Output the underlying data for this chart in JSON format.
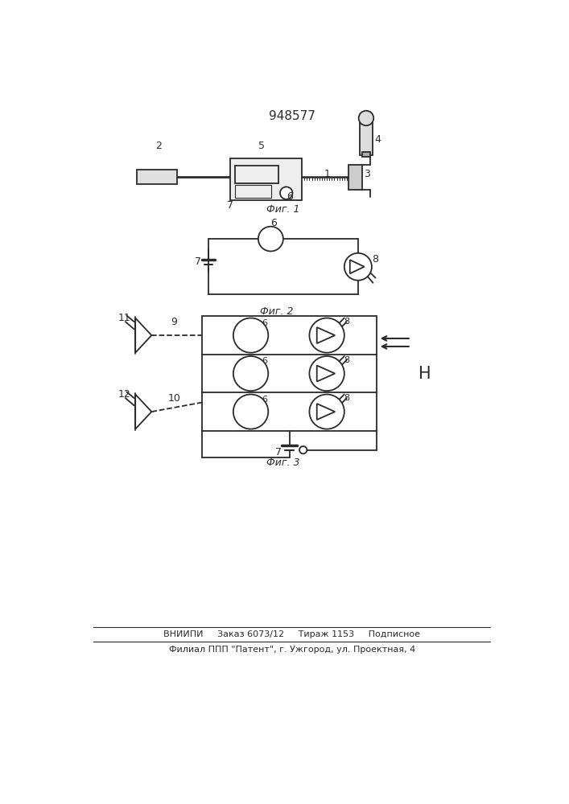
{
  "title": "948577",
  "fig1_label": "Фиг. 1",
  "fig2_label": "Фиг. 2",
  "fig3_label": "Фиг. 3",
  "footer_line1": "ВНИИПИ     Заказ 6073/12     Тираж 1153     Подписное",
  "footer_line2": "Филиал ППП \"Патент\", г. Ужгород, ул. Проектная, 4",
  "bg_color": "#ffffff",
  "line_color": "#2a2a2a"
}
